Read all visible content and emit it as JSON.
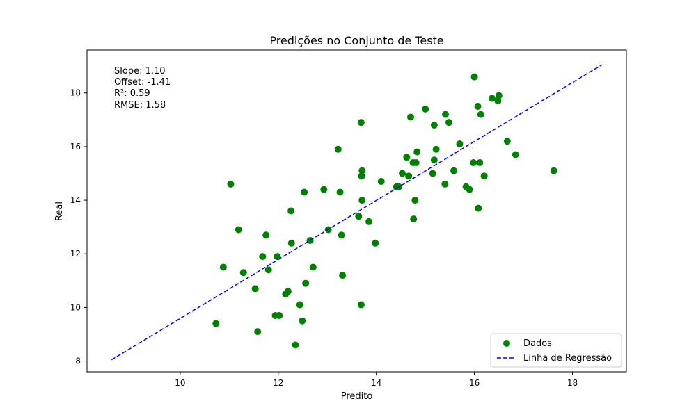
{
  "chart_data": {
    "type": "scatter",
    "title": "Predições no Conjunto de Teste",
    "xlabel": "Predito",
    "ylabel": "Real",
    "xlim": [
      8.1,
      19.1
    ],
    "ylim": [
      7.6,
      19.6
    ],
    "xticks": [
      10,
      12,
      14,
      16,
      18
    ],
    "yticks": [
      8,
      10,
      12,
      14,
      16,
      18
    ],
    "grid": false,
    "legend_position": "bottom-right",
    "annotations": [
      "Slope: 1.10",
      "Offset: -1.41",
      "R²: 0.59",
      "RMSE: 1.58"
    ],
    "series": [
      {
        "name": "Dados",
        "kind": "scatter",
        "color": "#008000",
        "points": [
          [
            10.73,
            9.4
          ],
          [
            10.88,
            11.5
          ],
          [
            11.03,
            14.6
          ],
          [
            11.19,
            12.9
          ],
          [
            11.29,
            11.3
          ],
          [
            11.53,
            10.7
          ],
          [
            11.58,
            9.1
          ],
          [
            11.68,
            11.9
          ],
          [
            11.75,
            12.7
          ],
          [
            11.8,
            11.4
          ],
          [
            11.94,
            9.7
          ],
          [
            11.98,
            11.9
          ],
          [
            12.02,
            9.7
          ],
          [
            12.15,
            10.5
          ],
          [
            12.2,
            10.6
          ],
          [
            12.26,
            13.6
          ],
          [
            12.27,
            12.4
          ],
          [
            12.35,
            8.6
          ],
          [
            12.44,
            10.1
          ],
          [
            12.49,
            9.5
          ],
          [
            12.53,
            14.3
          ],
          [
            12.56,
            10.9
          ],
          [
            12.65,
            12.5
          ],
          [
            12.71,
            11.5
          ],
          [
            12.93,
            14.4
          ],
          [
            13.02,
            12.9
          ],
          [
            13.22,
            15.9
          ],
          [
            13.26,
            14.3
          ],
          [
            13.29,
            12.7
          ],
          [
            13.31,
            11.2
          ],
          [
            13.64,
            13.4
          ],
          [
            13.69,
            16.9
          ],
          [
            13.69,
            10.1
          ],
          [
            13.7,
            14.9
          ],
          [
            13.71,
            14.0
          ],
          [
            13.71,
            15.1
          ],
          [
            13.85,
            13.2
          ],
          [
            13.98,
            12.4
          ],
          [
            14.1,
            14.7
          ],
          [
            14.41,
            14.5
          ],
          [
            14.46,
            14.5
          ],
          [
            14.53,
            15.0
          ],
          [
            14.62,
            15.6
          ],
          [
            14.66,
            14.9
          ],
          [
            14.7,
            17.1
          ],
          [
            14.75,
            15.4
          ],
          [
            14.76,
            13.3
          ],
          [
            14.79,
            14.0
          ],
          [
            14.81,
            15.4
          ],
          [
            14.83,
            15.8
          ],
          [
            15.0,
            17.4
          ],
          [
            15.15,
            15.0
          ],
          [
            15.18,
            16.8
          ],
          [
            15.18,
            15.5
          ],
          [
            15.22,
            15.9
          ],
          [
            15.4,
            14.6
          ],
          [
            15.41,
            17.2
          ],
          [
            15.48,
            16.9
          ],
          [
            15.58,
            15.1
          ],
          [
            15.7,
            16.1
          ],
          [
            15.83,
            14.5
          ],
          [
            15.9,
            14.4
          ],
          [
            15.98,
            15.4
          ],
          [
            16.0,
            18.6
          ],
          [
            16.07,
            17.5
          ],
          [
            16.08,
            13.7
          ],
          [
            16.11,
            15.4
          ],
          [
            16.13,
            17.2
          ],
          [
            16.2,
            14.9
          ],
          [
            16.36,
            17.8
          ],
          [
            16.48,
            17.7
          ],
          [
            16.5,
            17.9
          ],
          [
            16.67,
            16.2
          ],
          [
            16.84,
            15.7
          ],
          [
            17.62,
            15.1
          ]
        ]
      },
      {
        "name": "Linha de Regressão",
        "kind": "line",
        "style": "dashed",
        "color": "#0000ff",
        "slope": 1.1,
        "offset": -1.41,
        "x_range": [
          8.6,
          18.6
        ]
      }
    ]
  }
}
